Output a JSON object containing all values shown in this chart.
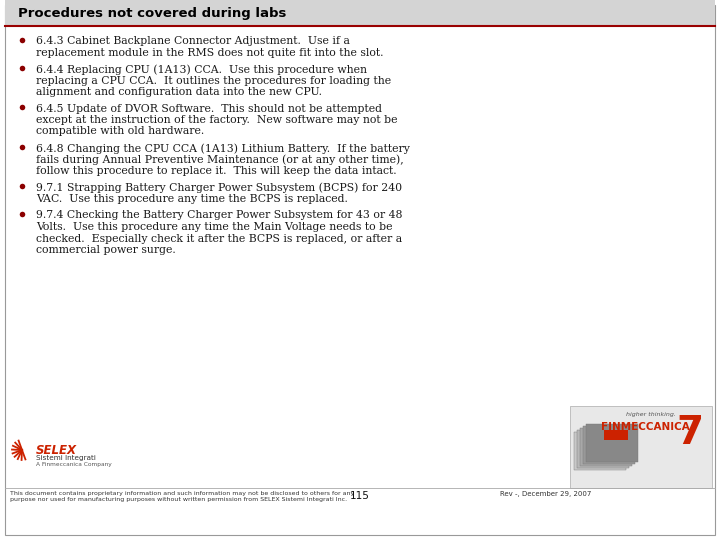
{
  "title": "Procedures not covered during labs",
  "title_bg": "#d4d4d4",
  "title_color": "#000000",
  "title_fontsize": 9.5,
  "body_bg": "#ffffff",
  "bullet_color": "#8b0000",
  "text_color": "#1a1a1a",
  "text_fontsize": 7.8,
  "bullets": [
    "•6.4.3 Cabinet Backplane Connector Adjustment.  Use if a\nreplacement module in the RMS does not quite fit into the slot.",
    "•6.4.4 Replacing CPU (1A13) CCA.  Use this procedure when\nreplacing a CPU CCA.  It outlines the procedures for loading the\nalignment and configuration data into the new CPU.",
    "•6.4.5 Update of DVOR Software.  This should not be attempted\nexcept at the instruction of the factory.  New software may not be\ncompatible with old hardware.",
    "•6.4.8 Changing the CPU CCA (1A13) Lithium Battery.  If the battery\nfails during Annual Preventive Maintenance (or at any other time),\nfollow this procedure to replace it.  This will keep the data intact.",
    "•9.7.1 Strapping Battery Charger Power Subsystem (BCPS) for 240\nVAC.  Use this procedure any time the BCPS is replaced.",
    "•9.7.4 Checking the Battery Charger Power Subsystem for 43 or 48\nVolts.  Use this procedure any time the Main Voltage needs to be\nchecked.  Especially check it after the BCPS is replaced, or after a\ncommercial power surge."
  ],
  "footer_left": "This document contains proprietary information and such information may not be disclosed to others for any\npurpose nor used for manufacturing purposes without written permission from SELEX Sistemi Integrati Inc.",
  "footer_center": "115",
  "footer_right": "Rev -, December 29, 2007",
  "footer_fontsize": 4.5,
  "border_color": "#aaaaaa",
  "separator_color": "#990000",
  "outer_border_color": "#999999"
}
